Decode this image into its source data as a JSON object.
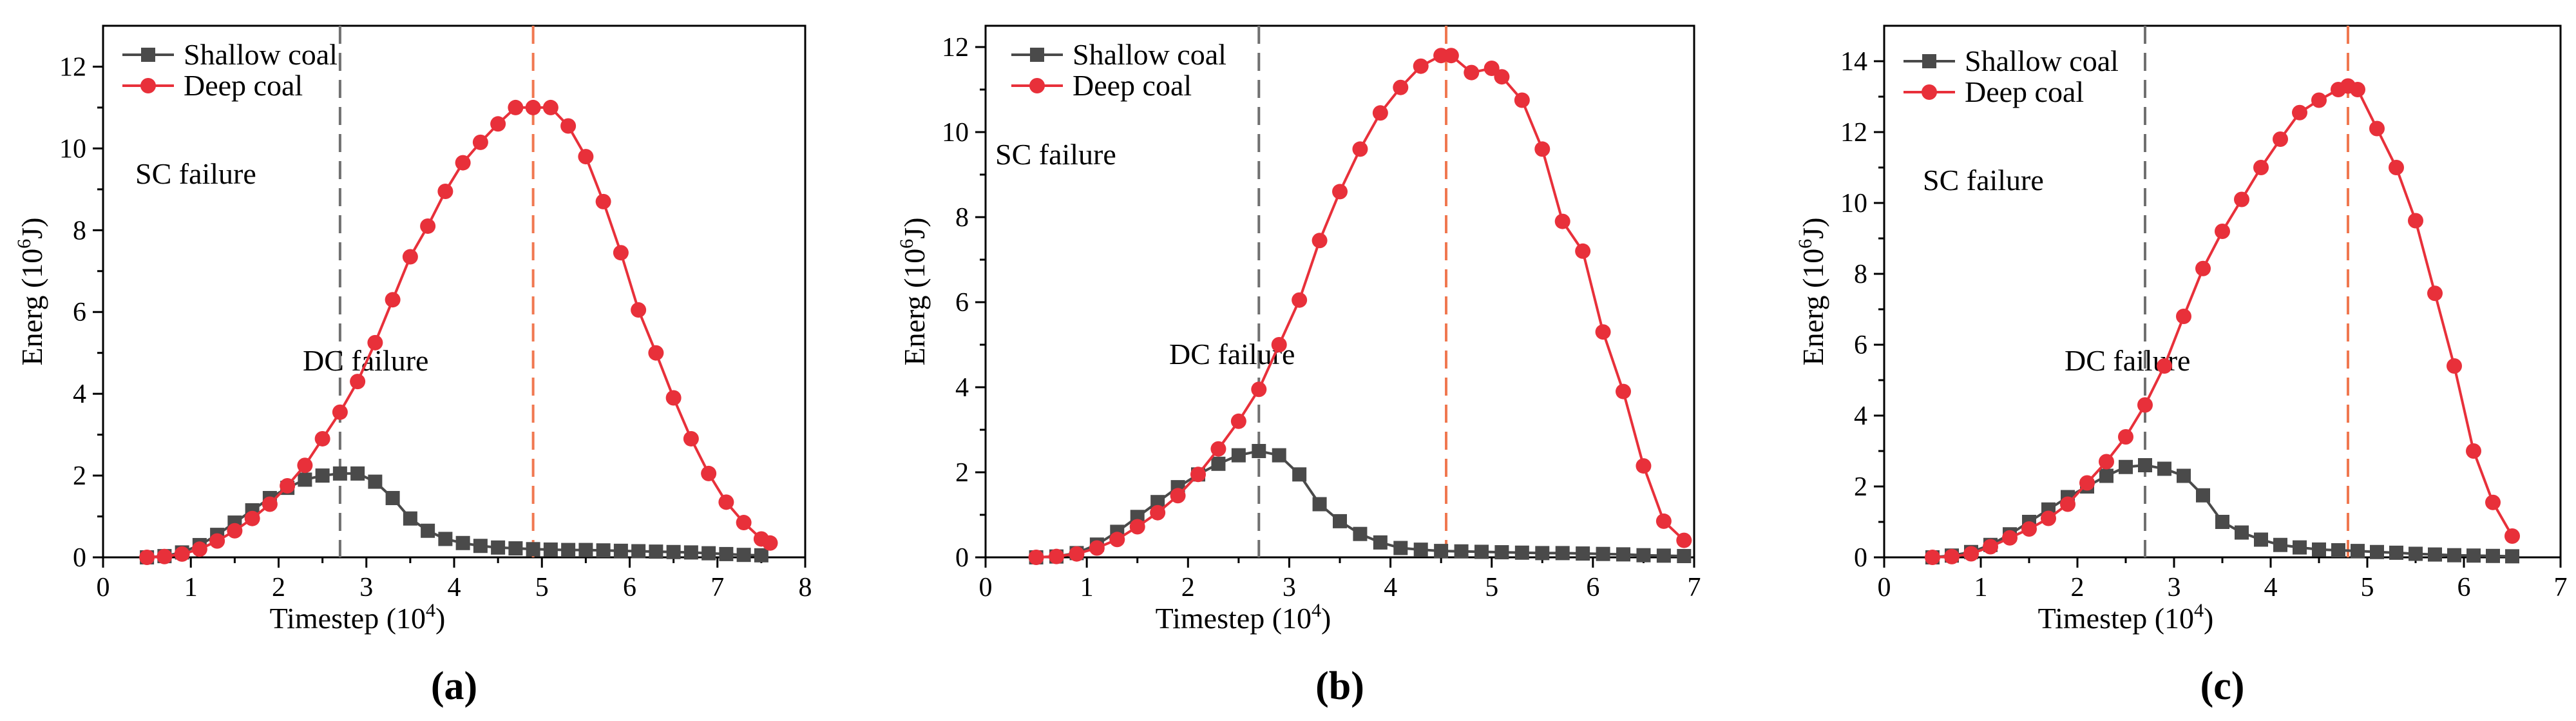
{
  "colors": {
    "shallow": "#4a4a4a",
    "deep": "#e8303a",
    "sc_line": "#707070",
    "dc_line": "#f07850",
    "axis": "#000000"
  },
  "chart_data": [
    {
      "type": "line",
      "panel_label": "(a)",
      "xlabel": "Timestep (10^4)",
      "xlabel_main": "Timestep (10",
      "xlabel_sup": "4",
      "xlabel_end": ")",
      "ylabel": "Energ (10^6J)",
      "ylabel_main": "Energ (10",
      "ylabel_sup": "6",
      "ylabel_end": "J)",
      "xlim": [
        0,
        8
      ],
      "ylim": [
        0,
        13
      ],
      "xticks": [
        0,
        1,
        2,
        3,
        4,
        5,
        6,
        7,
        8
      ],
      "yticks": [
        0,
        2,
        4,
        6,
        8,
        10,
        12
      ],
      "legend": [
        "Shallow coal",
        "Deep coal"
      ],
      "annotations": [
        {
          "text": "SC failure",
          "x": 2.7
        },
        {
          "text": "DC failure",
          "x": 4.9
        }
      ],
      "sc_failure_x": 2.7,
      "dc_failure_x": 4.9,
      "series": [
        {
          "name": "Shallow coal",
          "x": [
            0.5,
            0.7,
            0.9,
            1.1,
            1.3,
            1.5,
            1.7,
            1.9,
            2.1,
            2.3,
            2.5,
            2.7,
            2.9,
            3.1,
            3.3,
            3.5,
            3.7,
            3.9,
            4.1,
            4.3,
            4.5,
            4.7,
            4.9,
            5.1,
            5.3,
            5.5,
            5.7,
            5.9,
            6.1,
            6.3,
            6.5,
            6.7,
            6.9,
            7.1,
            7.3,
            7.5
          ],
          "y": [
            0.0,
            0.03,
            0.12,
            0.3,
            0.55,
            0.85,
            1.15,
            1.45,
            1.7,
            1.9,
            2.0,
            2.05,
            2.05,
            1.85,
            1.45,
            0.95,
            0.65,
            0.45,
            0.35,
            0.28,
            0.24,
            0.22,
            0.2,
            0.19,
            0.18,
            0.18,
            0.17,
            0.16,
            0.15,
            0.14,
            0.13,
            0.12,
            0.1,
            0.08,
            0.06,
            0.05
          ]
        },
        {
          "name": "Deep coal",
          "x": [
            0.5,
            0.7,
            0.9,
            1.1,
            1.3,
            1.5,
            1.7,
            1.9,
            2.1,
            2.3,
            2.5,
            2.7,
            2.9,
            3.1,
            3.3,
            3.5,
            3.7,
            3.9,
            4.1,
            4.3,
            4.5,
            4.7,
            4.9,
            5.1,
            5.3,
            5.5,
            5.7,
            5.9,
            6.1,
            6.3,
            6.5,
            6.7,
            6.9,
            7.1,
            7.3,
            7.5,
            7.6
          ],
          "y": [
            0.0,
            0.02,
            0.08,
            0.2,
            0.4,
            0.65,
            0.95,
            1.3,
            1.75,
            2.25,
            2.9,
            3.55,
            4.3,
            5.25,
            6.3,
            7.35,
            8.1,
            8.95,
            9.65,
            10.15,
            10.6,
            11.0,
            11.0,
            11.0,
            10.55,
            9.8,
            8.7,
            7.45,
            6.05,
            5.0,
            3.9,
            2.9,
            2.05,
            1.35,
            0.85,
            0.45,
            0.35
          ]
        }
      ]
    },
    {
      "type": "line",
      "panel_label": "(b)",
      "xlabel": "Timestep (10^4)",
      "xlabel_main": "Timestep (10",
      "xlabel_sup": "4",
      "xlabel_end": ")",
      "ylabel": "Energ (10^6J)",
      "ylabel_main": "Energ (10",
      "ylabel_sup": "6",
      "ylabel_end": "J)",
      "xlim": [
        0,
        7
      ],
      "ylim": [
        0,
        12.5
      ],
      "xticks": [
        0,
        1,
        2,
        3,
        4,
        5,
        6,
        7
      ],
      "yticks": [
        0,
        2,
        4,
        6,
        8,
        10,
        12
      ],
      "legend": [
        "Shallow coal",
        "Deep coal"
      ],
      "annotations": [
        {
          "text": "SC failure",
          "x": 2.7
        },
        {
          "text": "DC failure",
          "x": 4.55
        }
      ],
      "sc_failure_x": 2.7,
      "dc_failure_x": 4.55,
      "series": [
        {
          "name": "Shallow coal",
          "x": [
            0.5,
            0.7,
            0.9,
            1.1,
            1.3,
            1.5,
            1.7,
            1.9,
            2.1,
            2.3,
            2.5,
            2.7,
            2.9,
            3.1,
            3.3,
            3.5,
            3.7,
            3.9,
            4.1,
            4.3,
            4.5,
            4.7,
            4.9,
            5.1,
            5.3,
            5.5,
            5.7,
            5.9,
            6.1,
            6.3,
            6.5,
            6.7,
            6.9
          ],
          "y": [
            0.0,
            0.02,
            0.1,
            0.3,
            0.6,
            0.95,
            1.3,
            1.65,
            1.95,
            2.2,
            2.4,
            2.5,
            2.4,
            1.95,
            1.25,
            0.85,
            0.55,
            0.35,
            0.22,
            0.18,
            0.15,
            0.14,
            0.13,
            0.12,
            0.11,
            0.1,
            0.1,
            0.09,
            0.08,
            0.07,
            0.05,
            0.04,
            0.03
          ]
        },
        {
          "name": "Deep coal",
          "x": [
            0.5,
            0.7,
            0.9,
            1.1,
            1.3,
            1.5,
            1.7,
            1.9,
            2.1,
            2.3,
            2.5,
            2.7,
            2.9,
            3.1,
            3.3,
            3.5,
            3.7,
            3.9,
            4.1,
            4.3,
            4.5,
            4.6,
            4.8,
            5.0,
            5.1,
            5.3,
            5.5,
            5.7,
            5.9,
            6.1,
            6.3,
            6.5,
            6.7,
            6.9
          ],
          "y": [
            0.0,
            0.02,
            0.08,
            0.22,
            0.42,
            0.72,
            1.05,
            1.45,
            1.95,
            2.55,
            3.2,
            3.95,
            5.0,
            6.05,
            7.45,
            8.6,
            9.6,
            10.45,
            11.05,
            11.55,
            11.8,
            11.8,
            11.4,
            11.5,
            11.3,
            10.75,
            9.6,
            7.9,
            7.2,
            5.3,
            3.9,
            2.15,
            0.85,
            0.4
          ]
        }
      ]
    },
    {
      "type": "line",
      "panel_label": "(c)",
      "xlabel": "Timestep (10^4)",
      "xlabel_main": "Timestep (10",
      "xlabel_sup": "4",
      "xlabel_end": ")",
      "ylabel": "Energ (10^6J)",
      "ylabel_main": "Energ (10",
      "ylabel_sup": "6",
      "ylabel_end": "J)",
      "xlim": [
        0,
        7
      ],
      "ylim": [
        0,
        15
      ],
      "xticks": [
        0,
        1,
        2,
        3,
        4,
        5,
        6,
        7
      ],
      "yticks": [
        0,
        2,
        4,
        6,
        8,
        10,
        12,
        14
      ],
      "legend": [
        "Shallow coal",
        "Deep coal"
      ],
      "annotations": [
        {
          "text": "SC failure",
          "x": 2.7
        },
        {
          "text": "DC failure",
          "x": 4.8
        }
      ],
      "sc_failure_x": 2.7,
      "dc_failure_x": 4.8,
      "series": [
        {
          "name": "Shallow coal",
          "x": [
            0.5,
            0.7,
            0.9,
            1.1,
            1.3,
            1.5,
            1.7,
            1.9,
            2.1,
            2.3,
            2.5,
            2.7,
            2.9,
            3.1,
            3.3,
            3.5,
            3.7,
            3.9,
            4.1,
            4.3,
            4.5,
            4.7,
            4.9,
            5.1,
            5.3,
            5.5,
            5.7,
            5.9,
            6.1,
            6.3,
            6.5
          ],
          "y": [
            0.0,
            0.05,
            0.15,
            0.35,
            0.65,
            1.0,
            1.35,
            1.7,
            2.0,
            2.3,
            2.55,
            2.6,
            2.5,
            2.3,
            1.75,
            1.0,
            0.7,
            0.5,
            0.35,
            0.28,
            0.22,
            0.2,
            0.18,
            0.15,
            0.13,
            0.1,
            0.08,
            0.06,
            0.05,
            0.04,
            0.03
          ]
        },
        {
          "name": "Deep coal",
          "x": [
            0.5,
            0.7,
            0.9,
            1.1,
            1.3,
            1.5,
            1.7,
            1.9,
            2.1,
            2.3,
            2.5,
            2.7,
            2.9,
            3.1,
            3.3,
            3.5,
            3.7,
            3.9,
            4.1,
            4.3,
            4.5,
            4.7,
            4.8,
            4.9,
            5.1,
            5.3,
            5.5,
            5.7,
            5.9,
            6.1,
            6.3,
            6.5
          ],
          "y": [
            0.0,
            0.02,
            0.1,
            0.3,
            0.55,
            0.8,
            1.1,
            1.5,
            2.1,
            2.7,
            3.4,
            4.3,
            5.4,
            6.8,
            8.15,
            9.2,
            10.1,
            11.0,
            11.8,
            12.55,
            12.9,
            13.2,
            13.3,
            13.2,
            12.1,
            11.0,
            9.5,
            7.45,
            5.4,
            3.0,
            1.55,
            0.6
          ]
        }
      ]
    }
  ]
}
